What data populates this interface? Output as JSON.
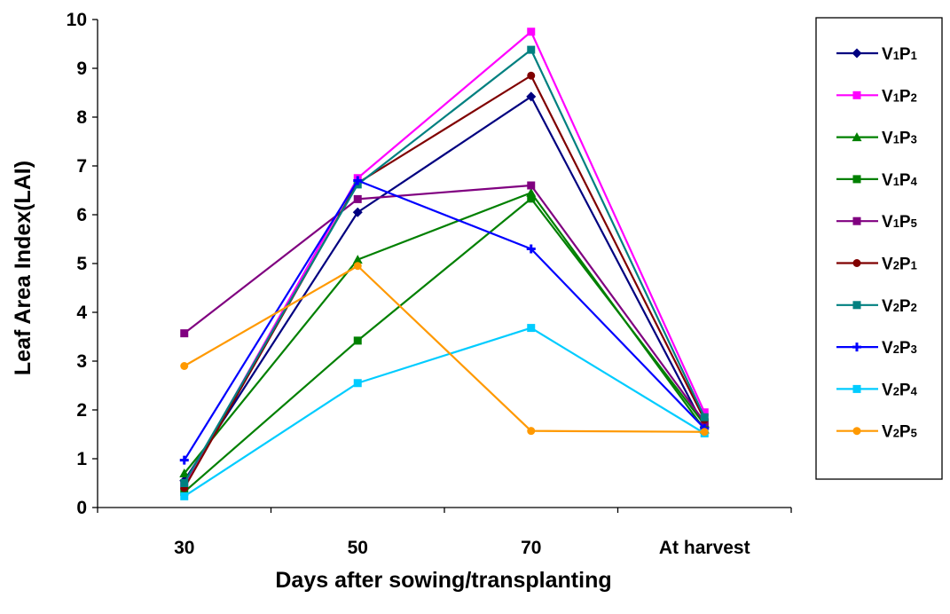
{
  "chart_data": {
    "type": "line",
    "xlabel": "Days after sowing/transplanting",
    "ylabel": "Leaf Area Index(LAI)",
    "categories": [
      "30",
      "50",
      "70",
      "At harvest"
    ],
    "ylim": [
      0,
      10
    ],
    "yticks": [
      0,
      1,
      2,
      3,
      4,
      5,
      6,
      7,
      8,
      9,
      10
    ],
    "grid": false,
    "legend_position": "right",
    "series": [
      {
        "name": "V1P1",
        "label_main": "V",
        "label_sub1": "1",
        "label_mid": "P",
        "label_sub2": "1",
        "color": "#000080",
        "marker": "diamond",
        "values": [
          0.55,
          6.05,
          8.42,
          1.65
        ]
      },
      {
        "name": "V1P2",
        "label_main": "V",
        "label_sub1": "1",
        "label_mid": "P",
        "label_sub2": "2",
        "color": "#ff00ff",
        "marker": "square",
        "values": [
          0.45,
          6.75,
          9.75,
          1.95
        ]
      },
      {
        "name": "V1P3",
        "label_main": "V",
        "label_sub1": "1",
        "label_mid": "P",
        "label_sub2": "3",
        "color": "#008000",
        "marker": "triangle",
        "values": [
          0.7,
          5.08,
          6.45,
          1.6
        ]
      },
      {
        "name": "V1P4",
        "label_main": "V",
        "label_sub1": "1",
        "label_mid": "P",
        "label_sub2": "4",
        "color": "#008000",
        "marker": "square",
        "values": [
          0.32,
          3.42,
          6.33,
          1.7
        ]
      },
      {
        "name": "V1P5",
        "label_main": "V",
        "label_sub1": "1",
        "label_mid": "P",
        "label_sub2": "5",
        "color": "#800080",
        "marker": "square",
        "values": [
          3.57,
          6.32,
          6.6,
          1.75
        ]
      },
      {
        "name": "V2P1",
        "label_main": "V",
        "label_sub1": "2",
        "label_mid": "P",
        "label_sub2": "1",
        "color": "#800000",
        "marker": "circle",
        "values": [
          0.4,
          6.65,
          8.85,
          1.8
        ]
      },
      {
        "name": "V2P2",
        "label_main": "V",
        "label_sub1": "2",
        "label_mid": "P",
        "label_sub2": "2",
        "color": "#008080",
        "marker": "square",
        "values": [
          0.5,
          6.62,
          9.38,
          1.85
        ]
      },
      {
        "name": "V2P3",
        "label_main": "V",
        "label_sub1": "2",
        "label_mid": "P",
        "label_sub2": "3",
        "color": "#0000ff",
        "marker": "plus",
        "values": [
          0.97,
          6.7,
          5.3,
          1.62
        ]
      },
      {
        "name": "V2P4",
        "label_main": "V",
        "label_sub1": "2",
        "label_mid": "P",
        "label_sub2": "4",
        "color": "#00ccff",
        "marker": "square",
        "values": [
          0.23,
          2.55,
          3.68,
          1.52
        ]
      },
      {
        "name": "V2P5",
        "label_main": "V",
        "label_sub1": "2",
        "label_mid": "P",
        "label_sub2": "5",
        "color": "#ff9900",
        "marker": "circle",
        "values": [
          2.9,
          4.95,
          1.57,
          1.55
        ]
      }
    ]
  }
}
